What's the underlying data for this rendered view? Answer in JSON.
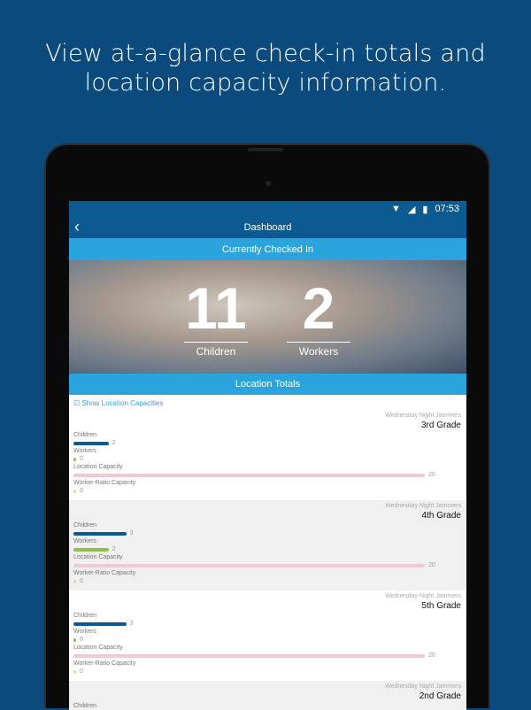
{
  "headline": "View at-a-glance check-in totals and location capacity information.",
  "status": {
    "time": "07:53"
  },
  "nav": {
    "title": "Dashboard",
    "back_icon": "chevron-left-icon"
  },
  "checked_in": {
    "title": "Currently Checked In",
    "children": {
      "value": "11",
      "label": "Children"
    },
    "workers": {
      "value": "2",
      "label": "Workers"
    }
  },
  "location_totals": {
    "title": "Location Totals",
    "show_capacities_label": "Show Location Capacities",
    "show_capacities_checked": true
  },
  "colors": {
    "children": "#0b5a91",
    "workers": "#8cc04a",
    "location_capacity": "#f1c9d0",
    "worker_ratio": "#f0d28c"
  },
  "scale_max": 20,
  "locations": [
    {
      "org": "Wednesday Night Jammers",
      "grade": "3rd Grade",
      "metrics": [
        {
          "label": "Children",
          "value": 2
        },
        {
          "label": "Workers",
          "value": 0
        },
        {
          "label": "Location Capacity",
          "value": 20
        },
        {
          "label": "Worker-Ratio Capacity",
          "value": 0
        }
      ]
    },
    {
      "org": "Wednesday Night Jammers",
      "grade": "4th Grade",
      "metrics": [
        {
          "label": "Children",
          "value": 3
        },
        {
          "label": "Workers",
          "value": 2
        },
        {
          "label": "Location Capacity",
          "value": 20
        },
        {
          "label": "Worker-Ratio Capacity",
          "value": 0
        }
      ]
    },
    {
      "org": "Wednesday Night Jammers",
      "grade": "5th Grade",
      "metrics": [
        {
          "label": "Children",
          "value": 3
        },
        {
          "label": "Workers",
          "value": 0
        },
        {
          "label": "Location Capacity",
          "value": 20
        },
        {
          "label": "Worker-Ratio Capacity",
          "value": 0
        }
      ]
    },
    {
      "org": "Wednesday Night Jammers",
      "grade": "2nd Grade",
      "metrics": [
        {
          "label": "Children"
        }
      ]
    }
  ]
}
